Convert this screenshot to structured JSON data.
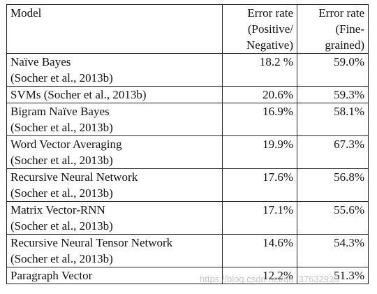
{
  "table": {
    "headers": {
      "model": "Model",
      "pos_neg": [
        "Error rate",
        "(Positive/",
        "Negative)"
      ],
      "fine": [
        "Error rate",
        "(Fine-",
        "grained)"
      ]
    },
    "rows": [
      {
        "model": [
          "Naïve Bayes",
          "(Socher et al., 2013b)"
        ],
        "pos_neg": "18.2 %",
        "fine": "59.0%"
      },
      {
        "model": [
          "SVMs (Socher et al., 2013b)"
        ],
        "pos_neg": "20.6%",
        "fine": "59.3%"
      },
      {
        "model": [
          "Bigram Naïve Bayes",
          "(Socher et al., 2013b)"
        ],
        "pos_neg": "16.9%",
        "fine": "58.1%"
      },
      {
        "model": [
          "Word Vector Averaging",
          "(Socher et al., 2013b)"
        ],
        "pos_neg": "19.9%",
        "fine": "67.3%"
      },
      {
        "model": [
          "Recursive Neural Network",
          "(Socher et al., 2013b)"
        ],
        "pos_neg": "17.6%",
        "fine": "56.8%"
      },
      {
        "model": [
          "Matrix Vector-RNN",
          "(Socher et al., 2013b)"
        ],
        "pos_neg": "17.1%",
        "fine": "55.6%"
      },
      {
        "model": [
          "Recursive Neural Tensor Network",
          "(Socher et al., 2013b)"
        ],
        "pos_neg": "14.6%",
        "fine": "54.3%"
      },
      {
        "model": [
          "Paragraph Vector"
        ],
        "pos_neg": "12.2%",
        "fine": "51.3%"
      }
    ]
  },
  "watermark": "https://blog.csdn.net/qq_37632935"
}
